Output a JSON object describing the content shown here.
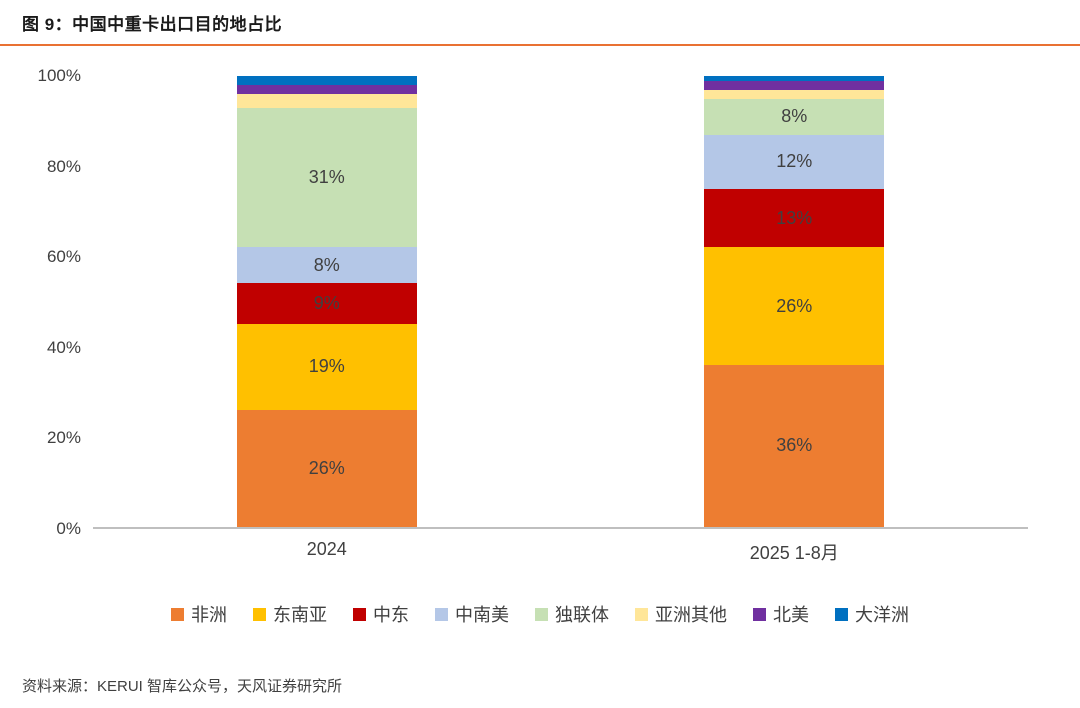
{
  "title": "图 9：中国中重卡出口目的地占比",
  "source": "资料来源：KERUI 智库公众号，天风证券研究所",
  "accent_color": "#E97132",
  "chart_data": {
    "type": "bar",
    "stacked": true,
    "title": "图 9：中国中重卡出口目的地占比",
    "categories": [
      "2024",
      "2025 1-8月"
    ],
    "series": [
      {
        "name": "非洲",
        "color": "#ED7D31",
        "values": [
          26,
          36
        ],
        "labels": [
          "26%",
          "36%"
        ]
      },
      {
        "name": "东南亚",
        "color": "#FFC000",
        "values": [
          19,
          26
        ],
        "labels": [
          "19%",
          "26%"
        ]
      },
      {
        "name": "中东",
        "color": "#C00000",
        "values": [
          9,
          13
        ],
        "labels": [
          "9%",
          "13%"
        ]
      },
      {
        "name": "中南美",
        "color": "#B4C7E7",
        "values": [
          8,
          12
        ],
        "labels": [
          "8%",
          "12%"
        ]
      },
      {
        "name": "独联体",
        "color": "#C6E0B4",
        "values": [
          31,
          8
        ],
        "labels": [
          "31%",
          "8%"
        ]
      },
      {
        "name": "亚洲其他",
        "color": "#FFE699",
        "values": [
          3,
          2
        ],
        "labels": [
          "",
          ""
        ]
      },
      {
        "name": "北美",
        "color": "#7030A0",
        "values": [
          2,
          2
        ],
        "labels": [
          "",
          ""
        ]
      },
      {
        "name": "大洋洲",
        "color": "#0070C0",
        "values": [
          2,
          1
        ],
        "labels": [
          "",
          ""
        ]
      }
    ],
    "ylim": [
      0,
      100
    ],
    "yticks": [
      "0%",
      "20%",
      "40%",
      "60%",
      "80%",
      "100%"
    ],
    "grid": false,
    "legend_position": "bottom"
  }
}
